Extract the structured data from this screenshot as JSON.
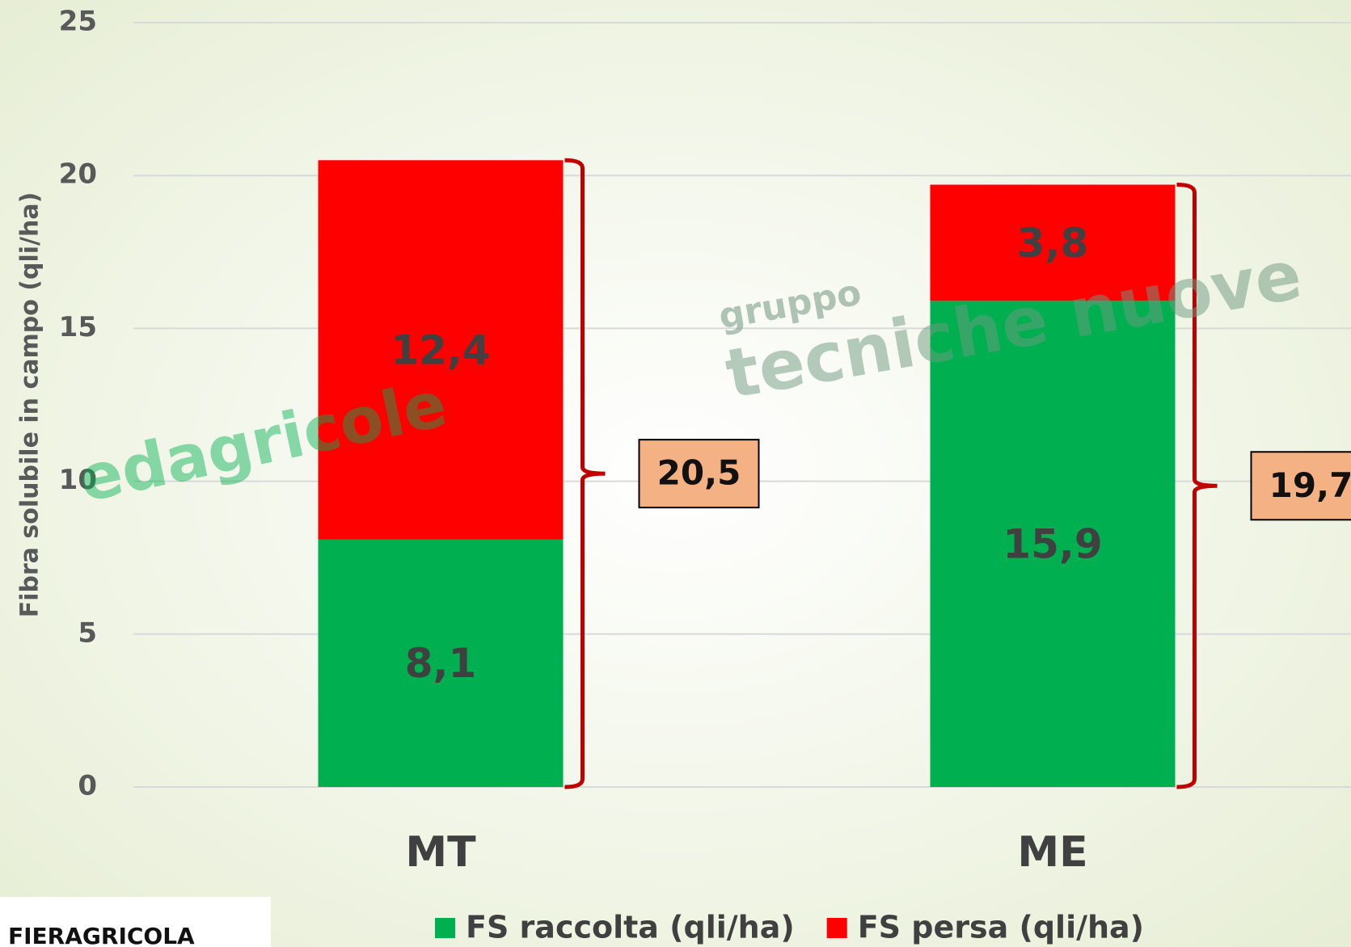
{
  "chart_data": {
    "type": "stacked_bar",
    "y_label": "Fibra solubile in campo (qli/ha)",
    "categories": [
      "MT",
      "ME"
    ],
    "series": [
      {
        "name": "FS raccolta (qli/ha)",
        "color": "#00b050",
        "values": [
          8.1,
          15.9
        ],
        "value_labels": [
          "8,1",
          "15,9"
        ]
      },
      {
        "name": "FS persa (qli/ha)",
        "color": "#ff0000",
        "values": [
          12.4,
          3.8
        ],
        "value_labels": [
          "12,4",
          "3,8"
        ]
      }
    ],
    "totals": {
      "values": [
        20.5,
        19.7
      ],
      "value_labels": [
        "20,5",
        "19,7"
      ],
      "color": "#f4b183"
    },
    "ylim": [
      0,
      25
    ],
    "yticks": [
      0,
      5,
      10,
      15,
      20,
      25
    ],
    "grid": true,
    "legend": "bottom",
    "watermarks": [
      "edagricole",
      "gruppo",
      "tecniche nuove"
    ],
    "logo": "FIERAGRICOLA"
  }
}
